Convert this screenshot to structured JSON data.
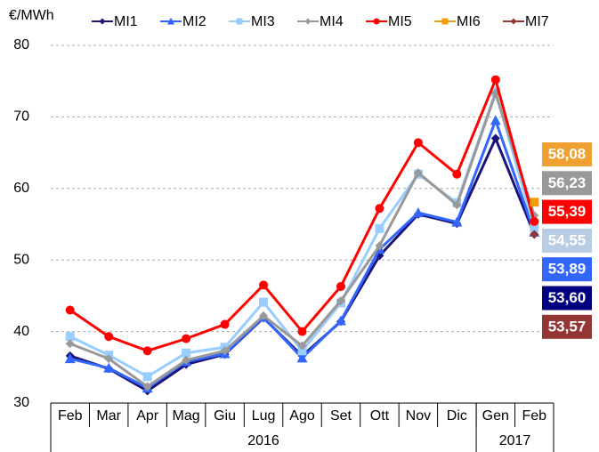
{
  "chart_data": {
    "type": "line",
    "y_label": "€/MWh",
    "categories": [
      "Feb",
      "Mar",
      "Apr",
      "Mag",
      "Giu",
      "Lug",
      "Ago",
      "Set",
      "Ott",
      "Nov",
      "Dic",
      "Gen",
      "Feb"
    ],
    "category_groups": [
      {
        "label": "2016",
        "count": 11
      },
      {
        "label": "2017",
        "count": 2
      }
    ],
    "ylim": [
      30,
      80
    ],
    "yticks": [
      30,
      40,
      50,
      60,
      70,
      80
    ],
    "grid": true,
    "series": [
      {
        "name": "MI1",
        "color": "#1a1478",
        "marker": "diamond",
        "values": [
          36.6,
          34.8,
          31.7,
          35.4,
          36.8,
          41.9,
          36.6,
          41.4,
          50.6,
          56.4,
          55.1,
          67.0,
          53.6
        ],
        "value_labels": [
          null,
          null,
          null,
          null,
          null,
          null,
          null,
          null,
          null,
          null,
          null,
          null,
          "53,60"
        ],
        "label_color": "#000080"
      },
      {
        "name": "MI2",
        "color": "#3366ff",
        "marker": "triangle",
        "values": [
          36.2,
          34.9,
          32.1,
          35.8,
          36.9,
          42.0,
          36.3,
          41.5,
          51.5,
          56.6,
          55.3,
          69.5,
          53.89
        ],
        "value_labels": [
          null,
          null,
          null,
          null,
          null,
          null,
          null,
          null,
          null,
          null,
          null,
          null,
          "53,89"
        ],
        "label_color": "#3366ff"
      },
      {
        "name": "MI3",
        "color": "#99ccff",
        "marker": "square",
        "values": [
          39.3,
          36.7,
          33.7,
          37.0,
          37.8,
          44.1,
          37.3,
          44.0,
          54.4,
          62.0,
          58.0,
          73.5,
          54.55
        ],
        "value_labels": [
          null,
          null,
          null,
          null,
          null,
          null,
          null,
          null,
          null,
          null,
          null,
          null,
          "54,55"
        ],
        "label_color": "#b8cce4"
      },
      {
        "name": "MI4",
        "color": "#999999",
        "marker": "diamond",
        "values": [
          38.3,
          36.2,
          32.3,
          36.0,
          37.3,
          42.2,
          38.0,
          44.3,
          52.0,
          62.2,
          57.7,
          73.3,
          56.23
        ],
        "value_labels": [
          null,
          null,
          null,
          null,
          null,
          null,
          null,
          null,
          null,
          null,
          null,
          null,
          "56,23"
        ],
        "label_color": "#999999"
      },
      {
        "name": "MI5",
        "color": "#ff0000",
        "marker": "circle",
        "values": [
          43.0,
          39.3,
          37.3,
          39.0,
          41.0,
          46.5,
          40.0,
          46.3,
          57.2,
          66.4,
          62.0,
          75.2,
          55.39
        ],
        "value_labels": [
          null,
          null,
          null,
          null,
          null,
          null,
          null,
          null,
          null,
          null,
          null,
          null,
          "55,39"
        ],
        "label_color": "#ff0000"
      },
      {
        "name": "MI6",
        "color": "#f39c12",
        "marker": "square",
        "values": [
          null,
          null,
          null,
          null,
          null,
          null,
          null,
          null,
          null,
          null,
          null,
          null,
          58.08
        ],
        "value_labels": [
          null,
          null,
          null,
          null,
          null,
          null,
          null,
          null,
          null,
          null,
          null,
          null,
          "58,08"
        ],
        "label_color": "#f0a030"
      },
      {
        "name": "MI7",
        "color": "#943634",
        "marker": "diamond",
        "values": [
          null,
          null,
          null,
          null,
          null,
          null,
          null,
          null,
          null,
          null,
          null,
          null,
          53.57
        ],
        "value_labels": [
          null,
          null,
          null,
          null,
          null,
          null,
          null,
          null,
          null,
          null,
          null,
          null,
          "53,57"
        ],
        "label_color": "#943634"
      }
    ]
  }
}
